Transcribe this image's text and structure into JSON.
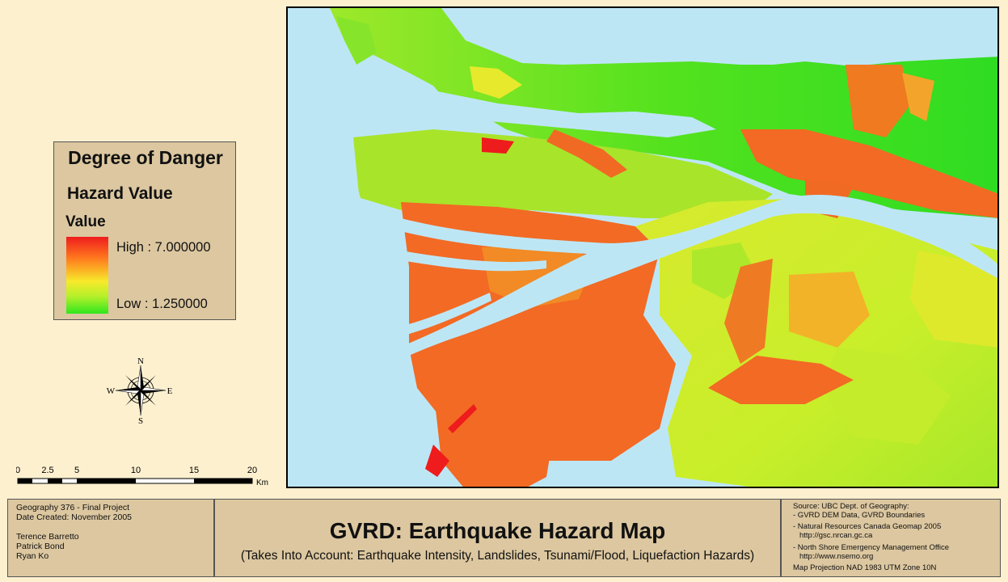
{
  "legend": {
    "title": "Degree of Danger",
    "subtitle": "Hazard Value",
    "field": "Value",
    "high": "High : 7.000000",
    "low": "Low : 1.250000",
    "colors": [
      "#ee1c1c",
      "#ff7a1e",
      "#f7ea2a",
      "#b3f02a",
      "#2ee61e"
    ]
  },
  "compass": {
    "n": "N",
    "s": "S",
    "e": "E",
    "w": "W",
    "icon": "compass-rose-icon"
  },
  "scale": {
    "ticks": [
      "0",
      "2.5",
      "5",
      "10",
      "15",
      "20"
    ],
    "unit": "Km"
  },
  "credits": {
    "line1": "Geography 376 - Final Project",
    "line2": "Date Created: November 2005",
    "authors": [
      "Terence Barretto",
      "Patrick Bond",
      "Ryan Ko"
    ]
  },
  "title": {
    "main": "GVRD: Earthquake Hazard Map",
    "sub": "(Takes Into Account: Earthquake Intensity, Landslides, Tsunami/Flood, Liquefaction Hazards)"
  },
  "sources": {
    "heading": "Source: UBC Dept. of Geography:",
    "items": [
      "- GVRD DEM Data, GVRD Boundaries",
      "- Natural Resources Canada Geomap 2005",
      "http://gsc.nrcan.gc.ca",
      "- North Shore Emergency Management Office",
      "http://www.nsemo.org"
    ],
    "projection": "Map Projection NAD 1983 UTM Zone 10N"
  },
  "map_colors": {
    "water": "#bde6f5",
    "high": "#ee1c1c",
    "mid_high": "#f26a24",
    "mid": "#f7ea2a",
    "low": "#2ee61e"
  }
}
